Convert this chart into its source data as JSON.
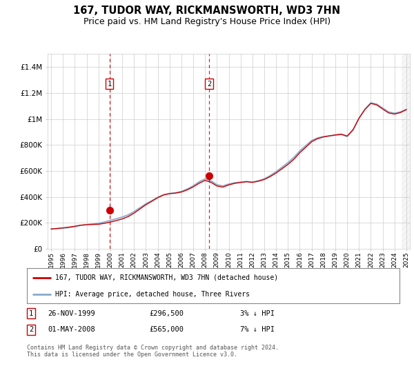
{
  "title": "167, TUDOR WAY, RICKMANSWORTH, WD3 7HN",
  "subtitle": "Price paid vs. HM Land Registry's House Price Index (HPI)",
  "legend_line1": "167, TUDOR WAY, RICKMANSWORTH, WD3 7HN (detached house)",
  "legend_line2": "HPI: Average price, detached house, Three Rivers",
  "transaction1_date": "26-NOV-1999",
  "transaction1_price": "£296,500",
  "transaction1_note": "3% ↓ HPI",
  "transaction2_date": "01-MAY-2008",
  "transaction2_price": "£565,000",
  "transaction2_note": "7% ↓ HPI",
  "footer": "Contains HM Land Registry data © Crown copyright and database right 2024.\nThis data is licensed under the Open Government Licence v3.0.",
  "red_color": "#cc0000",
  "blue_color": "#88aacc",
  "fill_color": "#ccddf0",
  "grid_color": "#cccccc",
  "background_color": "#ffffff",
  "hpi_values": [
    155000,
    157000,
    160000,
    165000,
    172000,
    182000,
    188000,
    193000,
    198000,
    208000,
    220000,
    233000,
    246000,
    263000,
    288000,
    318000,
    348000,
    372000,
    398000,
    418000,
    428000,
    433000,
    443000,
    462000,
    487000,
    517000,
    540000,
    525000,
    495000,
    485000,
    500000,
    510000,
    515000,
    520000,
    515000,
    525000,
    540000,
    565000,
    595000,
    630000,
    665000,
    705000,
    755000,
    795000,
    835000,
    855000,
    865000,
    870000,
    875000,
    880000,
    865000,
    915000,
    1005000,
    1075000,
    1125000,
    1115000,
    1085000,
    1055000,
    1045000,
    1055000,
    1075000
  ],
  "years_hpi": [
    1995.0,
    1995.5,
    1996.0,
    1996.5,
    1997.0,
    1997.5,
    1998.0,
    1998.5,
    1999.0,
    1999.5,
    2000.0,
    2000.5,
    2001.0,
    2001.5,
    2002.0,
    2002.5,
    2003.0,
    2003.5,
    2004.0,
    2004.5,
    2005.0,
    2005.5,
    2006.0,
    2006.5,
    2007.0,
    2007.5,
    2008.0,
    2008.5,
    2009.0,
    2009.5,
    2010.0,
    2010.5,
    2011.0,
    2011.5,
    2012.0,
    2012.5,
    2013.0,
    2013.5,
    2014.0,
    2014.5,
    2015.0,
    2015.5,
    2016.0,
    2016.5,
    2017.0,
    2017.5,
    2018.0,
    2018.5,
    2019.0,
    2019.5,
    2020.0,
    2020.5,
    2021.0,
    2021.5,
    2022.0,
    2022.5,
    2023.0,
    2023.5,
    2024.0,
    2024.5,
    2025.0
  ],
  "t1_x": 1999.917,
  "t2_x": 2008.333,
  "t1_y": 296500,
  "t2_y": 565000,
  "ylim": [
    0,
    1500000
  ],
  "xlim": [
    1994.7,
    2025.3
  ],
  "hatch_start": 2024.6,
  "hatch_end": 2025.3
}
